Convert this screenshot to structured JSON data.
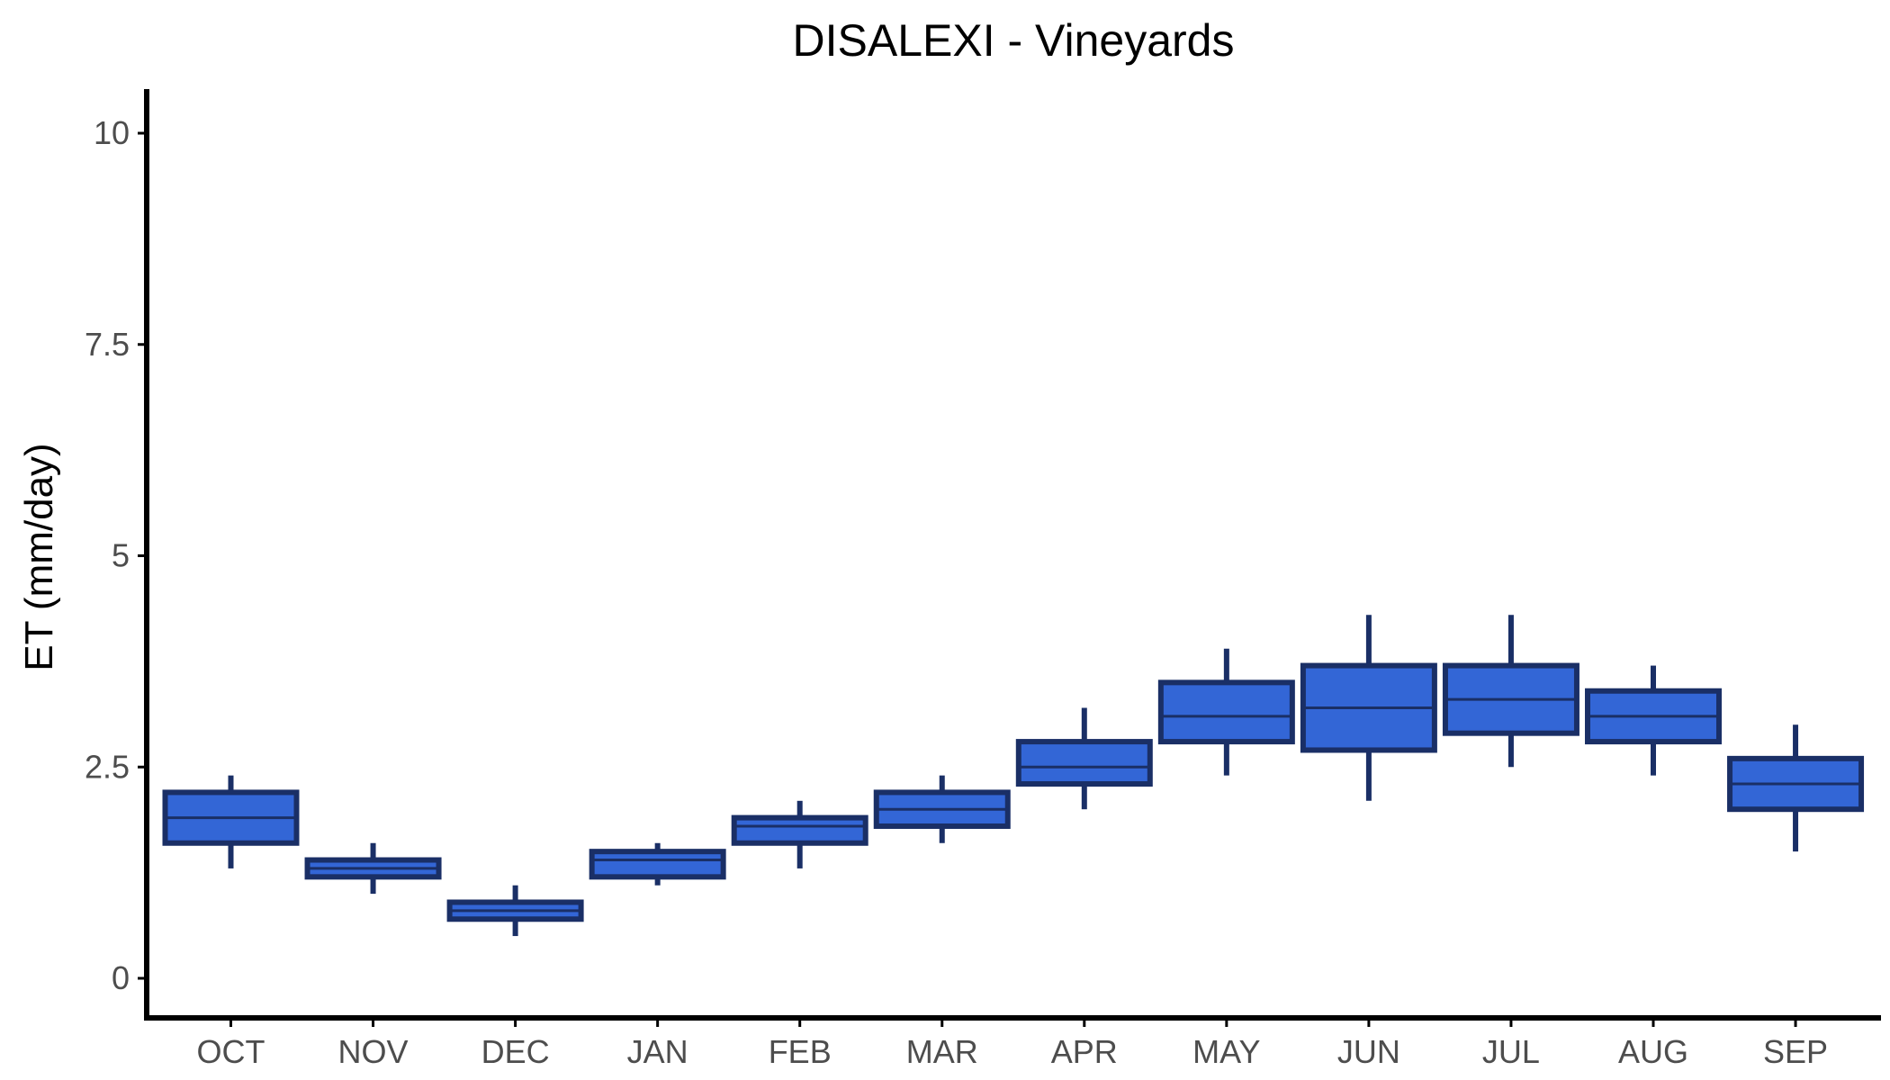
{
  "chart_data": {
    "type": "boxplot",
    "title": "DISALEXI - Vineyards",
    "xlabel": "",
    "ylabel": "ET (mm/day)",
    "ylim": [
      -0.5,
      10.5
    ],
    "yticks": [
      0,
      2.5,
      5,
      7.5,
      10
    ],
    "ytick_labels": [
      "0",
      "2.5",
      "5",
      "7.5",
      "10"
    ],
    "grid": false,
    "legend": "none",
    "colors": {
      "box_fill": "#3366d6",
      "box_edge": "#1a2f66",
      "axis": "#000000",
      "tick_text": "#4d4d4d"
    },
    "categories": [
      "OCT",
      "NOV",
      "DEC",
      "JAN",
      "FEB",
      "MAR",
      "APR",
      "MAY",
      "JUN",
      "JUL",
      "AUG",
      "SEP"
    ],
    "boxes": [
      {
        "category": "OCT",
        "min": 1.3,
        "q1": 1.6,
        "median": 1.9,
        "q3": 2.2,
        "max": 2.4
      },
      {
        "category": "NOV",
        "min": 1.0,
        "q1": 1.2,
        "median": 1.3,
        "q3": 1.4,
        "max": 1.6
      },
      {
        "category": "DEC",
        "min": 0.5,
        "q1": 0.7,
        "median": 0.8,
        "q3": 0.9,
        "max": 1.1
      },
      {
        "category": "JAN",
        "min": 1.1,
        "q1": 1.2,
        "median": 1.4,
        "q3": 1.5,
        "max": 1.6
      },
      {
        "category": "FEB",
        "min": 1.3,
        "q1": 1.6,
        "median": 1.8,
        "q3": 1.9,
        "max": 2.1
      },
      {
        "category": "MAR",
        "min": 1.6,
        "q1": 1.8,
        "median": 2.0,
        "q3": 2.2,
        "max": 2.4
      },
      {
        "category": "APR",
        "min": 2.0,
        "q1": 2.3,
        "median": 2.5,
        "q3": 2.8,
        "max": 3.2
      },
      {
        "category": "MAY",
        "min": 2.4,
        "q1": 2.8,
        "median": 3.1,
        "q3": 3.5,
        "max": 3.9
      },
      {
        "category": "JUN",
        "min": 2.1,
        "q1": 2.7,
        "median": 3.2,
        "q3": 3.7,
        "max": 4.3
      },
      {
        "category": "JUL",
        "min": 2.5,
        "q1": 2.9,
        "median": 3.3,
        "q3": 3.7,
        "max": 4.3
      },
      {
        "category": "AUG",
        "min": 2.4,
        "q1": 2.8,
        "median": 3.1,
        "q3": 3.4,
        "max": 3.7
      },
      {
        "category": "SEP",
        "min": 1.5,
        "q1": 2.0,
        "median": 2.3,
        "q3": 2.6,
        "max": 3.0
      }
    ]
  }
}
